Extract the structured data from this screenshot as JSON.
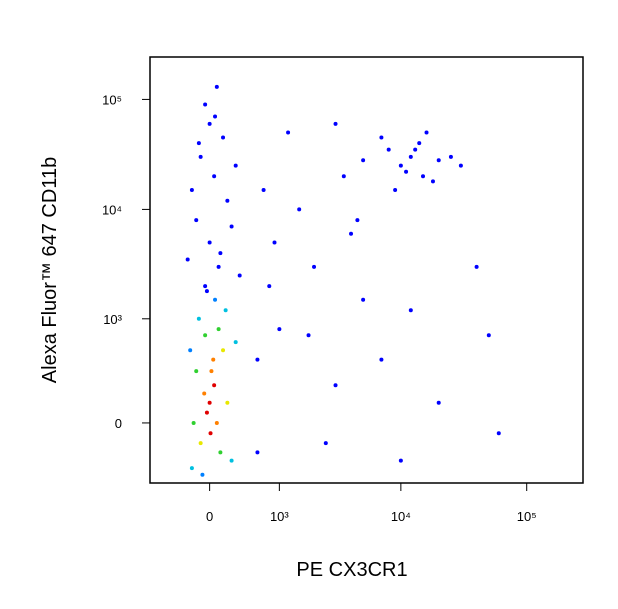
{
  "chart_data": {
    "type": "scatter",
    "x_label": "PE CX3CR1",
    "y_label": "Alexa Fluor™ 647 CD11b",
    "xlim": [
      -800,
      280000
    ],
    "ylim": [
      -370,
      243000
    ],
    "xticks": [
      0,
      {
        "value": 1000,
        "label": "10³"
      },
      {
        "value": 10000,
        "label": "10⁴"
      },
      {
        "value": 100000,
        "label": "10⁵"
      }
    ],
    "yticks": [
      0,
      {
        "value": 1000,
        "label": "10³"
      },
      {
        "value": 10000,
        "label": "10⁴"
      },
      {
        "value": 100000,
        "label": "10⁵"
      }
    ],
    "x": [
      0,
      50,
      -30,
      20,
      -60,
      80,
      10,
      40,
      -100,
      150,
      -150,
      120,
      -50,
      200,
      -180,
      100,
      -200,
      250,
      -120,
      300,
      180,
      -220,
      60,
      -80,
      -50,
      100,
      0,
      -150,
      200,
      50,
      -100,
      150,
      0,
      -50,
      80,
      250,
      -200,
      300,
      120,
      -30,
      350,
      -250,
      60,
      -120,
      10000,
      12000,
      15000,
      8000,
      20000,
      14000,
      18000,
      11000,
      25000,
      9000,
      16000,
      13000,
      5000,
      30000,
      7000,
      1000,
      2000,
      3000,
      1500,
      4000,
      600,
      800,
      5000,
      2500,
      7000,
      1200,
      3500,
      600,
      900,
      20000,
      60000,
      50000,
      12000,
      40000,
      3000,
      1800,
      700,
      10000,
      4500
    ],
    "values": [
      100,
      200,
      50,
      300,
      150,
      0,
      -50,
      400,
      -100,
      500,
      300,
      -150,
      700,
      100,
      0,
      800,
      -250,
      -200,
      1000,
      600,
      1200,
      500,
      1500,
      -300,
      2000,
      3000,
      5000,
      8000,
      12000,
      20000,
      30000,
      45000,
      60000,
      90000,
      130000,
      7000,
      15000,
      25000,
      4000,
      1800,
      2500,
      3500,
      70000,
      40000,
      25000,
      30000,
      20000,
      35000,
      28000,
      40000,
      18000,
      22000,
      30000,
      15000,
      50000,
      35000,
      28000,
      25000,
      45000,
      800,
      3000,
      200,
      10000,
      6000,
      400,
      2000,
      1500,
      -100,
      400,
      50000,
      20000,
      -150,
      5000,
      100,
      -50,
      700,
      1200,
      3000,
      60000,
      700,
      15000,
      -200,
      8000
    ],
    "colors": [
      "#e00000",
      "#e00000",
      "#e00000",
      "#ff8000",
      "#ff8000",
      "#ff8000",
      "#e00000",
      "#ff8000",
      "#e8e800",
      "#e8e800",
      "#30d030",
      "#30d030",
      "#30d030",
      "#e8e800",
      "#30d030",
      "#30d030",
      "#00c0e0",
      "#00c0e0",
      "#00c0e0",
      "#00c0e0",
      "#00c0e0",
      "#0080ff",
      "#0080ff",
      "#0080ff",
      "#0000ff",
      "#0000ff",
      "#0000ff",
      "#0000ff",
      "#0000ff",
      "#0000ff",
      "#0000ff",
      "#0000ff",
      "#0000ff",
      "#0000ff",
      "#0000ff",
      "#0000ff",
      "#0000ff",
      "#0000ff",
      "#0000ff",
      "#0000ff",
      "#0000ff",
      "#0000ff",
      "#0000ff",
      "#0000ff",
      "#0000ff",
      "#0000ff",
      "#0000ff",
      "#0000ff",
      "#0000ff",
      "#0000ff",
      "#0000ff",
      "#0000ff",
      "#0000ff",
      "#0000ff",
      "#0000ff",
      "#0000ff",
      "#0000ff",
      "#0000ff",
      "#0000ff",
      "#0000ff",
      "#0000ff",
      "#0000ff",
      "#0000ff",
      "#0000ff",
      "#0000ff",
      "#0000ff",
      "#0000ff",
      "#0000ff",
      "#0000ff",
      "#0000ff",
      "#0000ff",
      "#0000ff",
      "#0000ff",
      "#0000ff",
      "#0000ff",
      "#0000ff",
      "#0000ff",
      "#0000ff",
      "#0000ff",
      "#0000ff",
      "#0000ff",
      "#0000ff",
      "#0000ff"
    ]
  }
}
